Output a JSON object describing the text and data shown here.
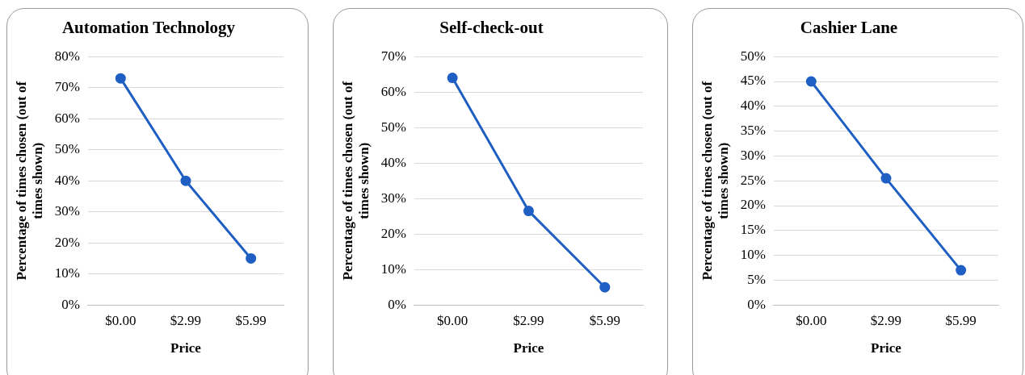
{
  "chart_data": [
    {
      "type": "line",
      "title": "Automation Technology",
      "xlabel": "Price",
      "ylabel": "Percentage of times chosen (out of times shown)",
      "categories": [
        "$0.00",
        "$2.99",
        "$5.99"
      ],
      "series": [
        {
          "color": "#1f5fc4",
          "values": [
            73,
            40,
            15
          ]
        }
      ],
      "ylim": [
        0,
        80
      ],
      "yticks": [
        {
          "value": 0,
          "label": "0%"
        },
        {
          "value": 10,
          "label": "10%"
        },
        {
          "value": 20,
          "label": "20%"
        },
        {
          "value": 30,
          "label": "30%"
        },
        {
          "value": 40,
          "label": "40%"
        },
        {
          "value": 50,
          "label": "50%"
        },
        {
          "value": 60,
          "label": "60%"
        },
        {
          "value": 70,
          "label": "70%"
        },
        {
          "value": 80,
          "label": "80%"
        }
      ],
      "grid": "y",
      "legend": false,
      "marker": "circle",
      "line_style": "solid"
    },
    {
      "type": "line",
      "title": "Self-check-out",
      "xlabel": "Price",
      "ylabel": "Percentage of times chosen (out of times shown)",
      "categories": [
        "$0.00",
        "$2.99",
        "$5.99"
      ],
      "series": [
        {
          "color": "#1f5fc4",
          "values": [
            64,
            26.5,
            5
          ]
        }
      ],
      "ylim": [
        0,
        70
      ],
      "yticks": [
        {
          "value": 0,
          "label": "0%"
        },
        {
          "value": 10,
          "label": "10%"
        },
        {
          "value": 20,
          "label": "20%"
        },
        {
          "value": 30,
          "label": "30%"
        },
        {
          "value": 40,
          "label": "40%"
        },
        {
          "value": 50,
          "label": "50%"
        },
        {
          "value": 60,
          "label": "60%"
        },
        {
          "value": 70,
          "label": "70%"
        }
      ],
      "grid": "y",
      "legend": false,
      "marker": "circle",
      "line_style": "solid"
    },
    {
      "type": "line",
      "title": "Cashier Lane",
      "xlabel": "Price",
      "ylabel": "Percentage of times chosen (out of times shown)",
      "categories": [
        "$0.00",
        "$2.99",
        "$5.99"
      ],
      "series": [
        {
          "color": "#1f5fc4",
          "values": [
            45,
            25.5,
            7
          ]
        }
      ],
      "ylim": [
        0,
        50
      ],
      "yticks": [
        {
          "value": 0,
          "label": "0%"
        },
        {
          "value": 5,
          "label": "5%"
        },
        {
          "value": 10,
          "label": "10%"
        },
        {
          "value": 15,
          "label": "15%"
        },
        {
          "value": 20,
          "label": "20%"
        },
        {
          "value": 25,
          "label": "25%"
        },
        {
          "value": 30,
          "label": "30%"
        },
        {
          "value": 35,
          "label": "35%"
        },
        {
          "value": 40,
          "label": "40%"
        },
        {
          "value": 45,
          "label": "45%"
        },
        {
          "value": 50,
          "label": "50%"
        }
      ],
      "grid": "y",
      "legend": false,
      "marker": "circle",
      "line_style": "solid"
    }
  ]
}
